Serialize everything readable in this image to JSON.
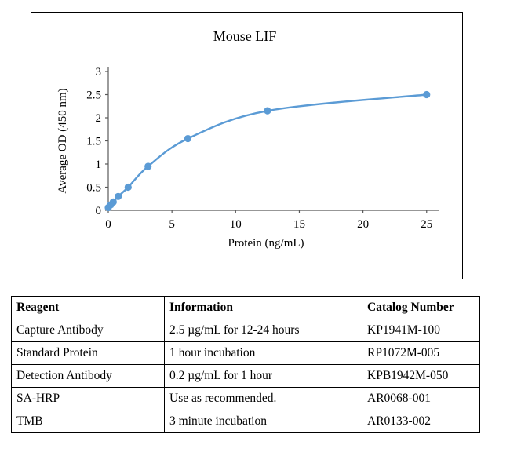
{
  "chart_data": {
    "type": "line",
    "title": "Mouse LIF",
    "xlabel": "Protein (ng/mL)",
    "ylabel": "Average OD (450 nm)",
    "x": [
      0,
      0.195,
      0.39,
      0.78,
      1.56,
      3.125,
      6.25,
      12.5,
      25
    ],
    "y": [
      0.06,
      0.12,
      0.18,
      0.3,
      0.5,
      0.95,
      1.55,
      2.15,
      2.5
    ],
    "xlim": [
      0,
      26
    ],
    "ylim": [
      0,
      3
    ],
    "xticks": [
      0,
      5,
      10,
      15,
      20,
      25
    ],
    "yticks": [
      0,
      0.5,
      1,
      1.5,
      2,
      2.5,
      3
    ],
    "line_color": "#5b9bd5",
    "axis_color": "#595959",
    "marker": "circle",
    "grid": false,
    "legend": null
  },
  "table": {
    "headers": [
      "Reagent",
      "Information",
      "Catalog Number"
    ],
    "rows": [
      [
        "Capture Antibody",
        "2.5 µg/mL for 12-24 hours",
        "KP1941M-100"
      ],
      [
        "Standard Protein",
        "1 hour incubation",
        "RP1072M-005"
      ],
      [
        "Detection Antibody",
        "0.2 µg/mL for 1 hour",
        "KPB1942M-050"
      ],
      [
        "SA-HRP",
        "Use as recommended.",
        "AR0068-001"
      ],
      [
        "TMB",
        "3 minute incubation",
        "AR0133-002"
      ]
    ]
  }
}
